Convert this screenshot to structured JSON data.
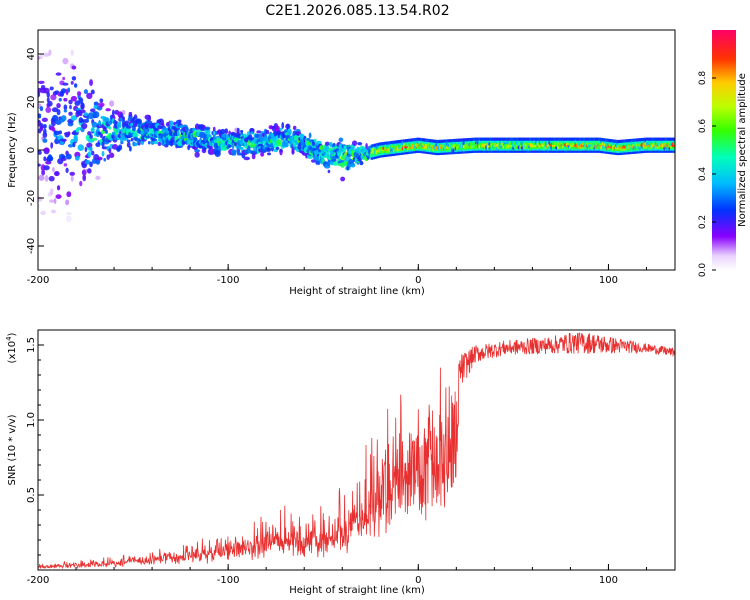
{
  "title": "C2E1.2026.085.13.54.R02",
  "colorbar": {
    "label": "Normalized spectral amplitude",
    "ticks": [
      "0.0",
      "0.2",
      "0.4",
      "0.6",
      "0.8"
    ],
    "tick_values": [
      0.0,
      0.2,
      0.4,
      0.6,
      0.8
    ]
  },
  "chart_data": [
    {
      "type": "heatmap",
      "title": "",
      "xlabel": "Height of straight line (km)",
      "ylabel": "Frequency (Hz)",
      "xlim": [
        -200,
        135
      ],
      "ylim": [
        -50,
        50
      ],
      "xticks": [
        -200,
        -100,
        0,
        100
      ],
      "xtick_labels": [
        "-200",
        "-100",
        "0",
        "100"
      ],
      "yticks": [
        -40,
        -20,
        0,
        20,
        40
      ],
      "ytick_labels": [
        "-40",
        "-20",
        "0",
        "20",
        "40"
      ],
      "colormap": "rainbow (violet=0 to magenta-red=1)",
      "ridge": [
        {
          "x": -198,
          "y": 9,
          "amp": 0.25
        },
        {
          "x": -185,
          "y": 9,
          "amp": 0.35
        },
        {
          "x": -170,
          "y": 8,
          "amp": 0.45
        },
        {
          "x": -155,
          "y": 7,
          "amp": 0.45
        },
        {
          "x": -140,
          "y": 7,
          "amp": 0.5
        },
        {
          "x": -125,
          "y": 6,
          "amp": 0.5
        },
        {
          "x": -110,
          "y": 4,
          "amp": 0.5
        },
        {
          "x": -95,
          "y": 3,
          "amp": 0.5
        },
        {
          "x": -80,
          "y": 3,
          "amp": 0.55
        },
        {
          "x": -70,
          "y": 5,
          "amp": 0.55
        },
        {
          "x": -60,
          "y": 3,
          "amp": 0.55
        },
        {
          "x": -50,
          "y": -2,
          "amp": 0.6
        },
        {
          "x": -40,
          "y": -3,
          "amp": 0.6
        },
        {
          "x": -30,
          "y": -2,
          "amp": 0.65
        },
        {
          "x": -20,
          "y": 0,
          "amp": 0.75
        },
        {
          "x": -10,
          "y": 1,
          "amp": 0.85
        },
        {
          "x": 0,
          "y": 2,
          "amp": 0.85
        },
        {
          "x": 10,
          "y": 1,
          "amp": 0.8
        },
        {
          "x": 30,
          "y": 2,
          "amp": 0.65
        },
        {
          "x": 60,
          "y": 2,
          "amp": 0.7
        },
        {
          "x": 80,
          "y": 2,
          "amp": 0.85
        },
        {
          "x": 95,
          "y": 2,
          "amp": 0.9
        },
        {
          "x": 105,
          "y": 1,
          "amp": 0.85
        },
        {
          "x": 120,
          "y": 2,
          "amp": 0.8
        },
        {
          "x": 135,
          "y": 2,
          "amp": 0.85
        }
      ],
      "spread_hz": [
        {
          "x": -200,
          "spread": 40
        },
        {
          "x": -180,
          "spread": 34
        },
        {
          "x": -160,
          "spread": 14
        },
        {
          "x": -140,
          "spread": 8
        },
        {
          "x": -100,
          "spread": 8
        },
        {
          "x": -60,
          "spread": 7
        },
        {
          "x": -40,
          "spread": 10
        },
        {
          "x": -25,
          "spread": 3
        },
        {
          "x": 0,
          "spread": 2
        },
        {
          "x": 135,
          "spread": 2
        }
      ]
    },
    {
      "type": "line",
      "title": "",
      "xlabel": "Height of straight line (km)",
      "ylabel": "SNR (10 * v/v)",
      "yscale_label": "(x10",
      "yscale_exp": "4",
      "yscale_close": ")",
      "xlim": [
        -200,
        135
      ],
      "ylim": [
        0,
        1.6
      ],
      "xticks": [
        -200,
        -100,
        0,
        100
      ],
      "xtick_labels": [
        "-200",
        "-100",
        "0",
        "100"
      ],
      "yticks": [
        0.5,
        1.0,
        1.5
      ],
      "ytick_labels": [
        "0.5",
        "1.0",
        "1.5"
      ],
      "color": "#e83030",
      "series": [
        {
          "name": "SNR",
          "envelope": [
            {
              "x": -200,
              "base": 0.02,
              "noise": 0.02
            },
            {
              "x": -160,
              "base": 0.05,
              "noise": 0.05
            },
            {
              "x": -130,
              "base": 0.09,
              "noise": 0.08
            },
            {
              "x": -110,
              "base": 0.12,
              "noise": 0.12
            },
            {
              "x": -90,
              "base": 0.16,
              "noise": 0.18
            },
            {
              "x": -75,
              "base": 0.18,
              "noise": 0.3
            },
            {
              "x": -60,
              "base": 0.16,
              "noise": 0.22
            },
            {
              "x": -45,
              "base": 0.22,
              "noise": 0.3
            },
            {
              "x": -30,
              "base": 0.3,
              "noise": 0.45
            },
            {
              "x": -20,
              "base": 0.48,
              "noise": 0.65
            },
            {
              "x": -15,
              "base": 0.62,
              "noise": 0.55
            },
            {
              "x": -8,
              "base": 0.8,
              "noise": 0.4
            },
            {
              "x": 0,
              "base": 0.85,
              "noise": 0.3
            },
            {
              "x": 8,
              "base": 0.95,
              "noise": 0.35
            },
            {
              "x": 15,
              "base": 1.15,
              "noise": 0.25
            },
            {
              "x": 22,
              "base": 1.32,
              "noise": 0.12
            },
            {
              "x": 30,
              "base": 1.44,
              "noise": 0.06
            },
            {
              "x": 45,
              "base": 1.48,
              "noise": 0.05
            },
            {
              "x": 70,
              "base": 1.5,
              "noise": 0.06
            },
            {
              "x": 85,
              "base": 1.52,
              "noise": 0.08
            },
            {
              "x": 100,
              "base": 1.5,
              "noise": 0.06
            },
            {
              "x": 120,
              "base": 1.48,
              "noise": 0.03
            },
            {
              "x": 135,
              "base": 1.45,
              "noise": 0.03
            }
          ]
        }
      ]
    }
  ]
}
